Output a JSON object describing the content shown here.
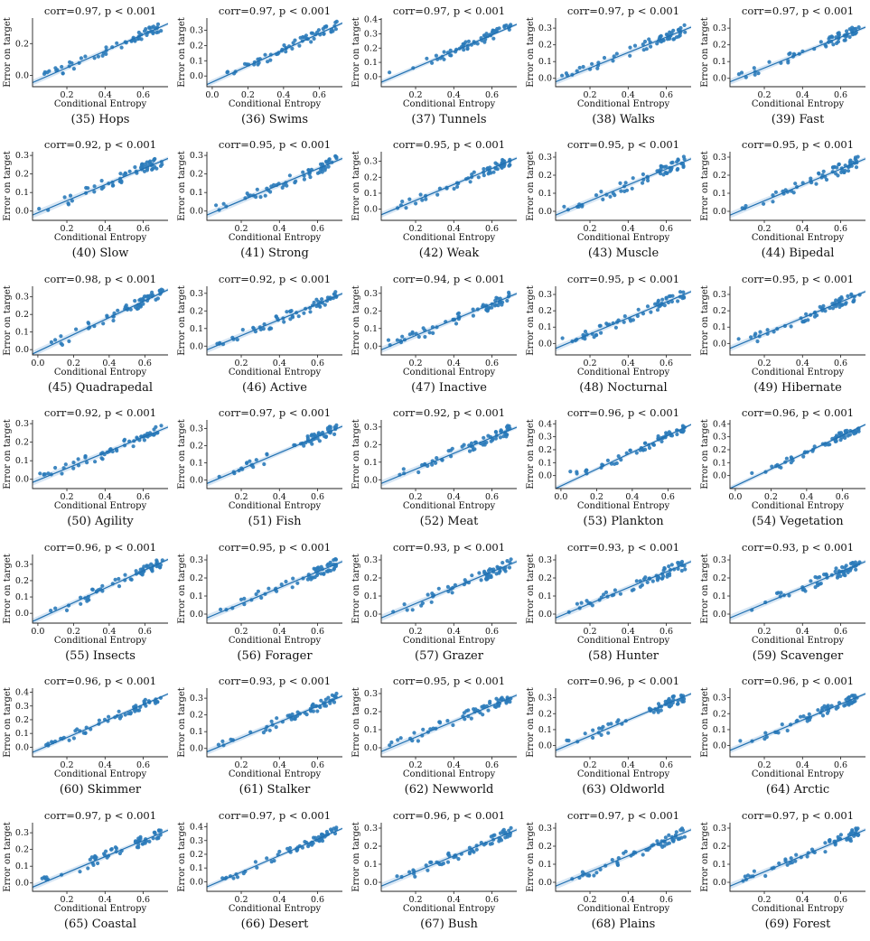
{
  "chart_data": [
    {
      "type": "scatter",
      "title": "corr=0.97, p < 0.001",
      "caption": "(35) Hops",
      "xlabel": "Conditional Entropy",
      "ylabel": "Error on target",
      "xlim": [
        0.02,
        0.73
      ],
      "ylim": [
        -0.07,
        0.36
      ],
      "xticks": [
        0.2,
        0.4,
        0.6
      ],
      "yticks": [
        0.0,
        0.2
      ],
      "fit": [
        -0.055,
        0.52
      ]
    },
    {
      "type": "scatter",
      "title": "corr=0.97, p < 0.001",
      "caption": "(36) Swims",
      "xlabel": "Conditional Entropy",
      "ylabel": "Error on target",
      "xlim": [
        -0.03,
        0.73
      ],
      "ylim": [
        -0.07,
        0.38
      ],
      "xticks": [
        0.0,
        0.2,
        0.4,
        0.6
      ],
      "yticks": [
        0.0,
        0.1,
        0.2,
        0.3
      ],
      "fit": [
        -0.04,
        0.53
      ]
    },
    {
      "type": "scatter",
      "title": "corr=0.97, p < 0.001",
      "caption": "(37) Tunnels",
      "xlabel": "Conditional Entropy",
      "ylabel": "Error on target",
      "xlim": [
        0.02,
        0.73
      ],
      "ylim": [
        -0.07,
        0.41
      ],
      "xticks": [
        0.2,
        0.4,
        0.6
      ],
      "yticks": [
        0.0,
        0.1,
        0.2,
        0.3,
        0.4
      ],
      "fit": [
        -0.05,
        0.57
      ]
    },
    {
      "type": "scatter",
      "title": "corr=0.97, p < 0.001",
      "caption": "(38) Walks",
      "xlabel": "Conditional Entropy",
      "ylabel": "Error on target",
      "xlim": [
        0.02,
        0.73
      ],
      "ylim": [
        -0.05,
        0.36
      ],
      "xticks": [
        0.2,
        0.4,
        0.6
      ],
      "yticks": [
        0.0,
        0.1,
        0.2,
        0.3
      ],
      "fit": [
        -0.03,
        0.46
      ]
    },
    {
      "type": "scatter",
      "title": "corr=0.97, p < 0.001",
      "caption": "(39) Fast",
      "xlabel": "Conditional Entropy",
      "ylabel": "Error on target",
      "xlim": [
        0.02,
        0.73
      ],
      "ylim": [
        -0.05,
        0.36
      ],
      "xticks": [
        0.2,
        0.4,
        0.6
      ],
      "yticks": [
        0.0,
        0.1,
        0.2,
        0.3
      ],
      "fit": [
        -0.03,
        0.46
      ]
    },
    {
      "type": "scatter",
      "title": "corr=0.92, p < 0.001",
      "caption": "(40) Slow",
      "xlabel": "Conditional Entropy",
      "ylabel": "Error on target",
      "xlim": [
        0.02,
        0.73
      ],
      "ylim": [
        -0.05,
        0.32
      ],
      "xticks": [
        0.2,
        0.4,
        0.6
      ],
      "yticks": [
        0.0,
        0.1,
        0.2,
        0.3
      ],
      "fit": [
        -0.03,
        0.43
      ]
    },
    {
      "type": "scatter",
      "title": "corr=0.95, p < 0.001",
      "caption": "(41) Strong",
      "xlabel": "Conditional Entropy",
      "ylabel": "Error on target",
      "xlim": [
        0.02,
        0.73
      ],
      "ylim": [
        -0.05,
        0.32
      ],
      "xticks": [
        0.2,
        0.4,
        0.6
      ],
      "yticks": [
        0.0,
        0.1,
        0.2,
        0.3
      ],
      "fit": [
        -0.03,
        0.43
      ]
    },
    {
      "type": "scatter",
      "title": "corr=0.95, p < 0.001",
      "caption": "(42) Weak",
      "xlabel": "Conditional Entropy",
      "ylabel": "Error on target",
      "xlim": [
        0.02,
        0.73
      ],
      "ylim": [
        -0.07,
        0.36
      ],
      "xticks": [
        0.2,
        0.4,
        0.6
      ],
      "yticks": [
        0.0,
        0.1,
        0.2,
        0.3
      ],
      "fit": [
        -0.045,
        0.5
      ]
    },
    {
      "type": "scatter",
      "title": "corr=0.95, p < 0.001",
      "caption": "(43) Muscle",
      "xlabel": "Conditional Entropy",
      "ylabel": "Error on target",
      "xlim": [
        0.02,
        0.73
      ],
      "ylim": [
        -0.05,
        0.33
      ],
      "xticks": [
        0.2,
        0.4,
        0.6
      ],
      "yticks": [
        0.0,
        0.1,
        0.2,
        0.3
      ],
      "fit": [
        -0.03,
        0.44
      ]
    },
    {
      "type": "scatter",
      "title": "corr=0.95, p < 0.001",
      "caption": "(44) Bipedal",
      "xlabel": "Conditional Entropy",
      "ylabel": "Error on target",
      "xlim": [
        0.02,
        0.73
      ],
      "ylim": [
        -0.05,
        0.33
      ],
      "xticks": [
        0.2,
        0.4,
        0.6
      ],
      "yticks": [
        0.0,
        0.1,
        0.2,
        0.3
      ],
      "fit": [
        -0.03,
        0.44
      ]
    },
    {
      "type": "scatter",
      "title": "corr=0.98, p < 0.001",
      "caption": "(45) Quadrapedal",
      "xlabel": "Conditional Entropy",
      "ylabel": "Error on target",
      "xlim": [
        -0.03,
        0.73
      ],
      "ylim": [
        -0.03,
        0.36
      ],
      "xticks": [
        0.0,
        0.2,
        0.4,
        0.6
      ],
      "yticks": [
        0.0,
        0.1,
        0.2,
        0.3
      ],
      "fit": [
        -0.01,
        0.48
      ]
    },
    {
      "type": "scatter",
      "title": "corr=0.92, p < 0.001",
      "caption": "(46) Active",
      "xlabel": "Conditional Entropy",
      "ylabel": "Error on target",
      "xlim": [
        0.02,
        0.73
      ],
      "ylim": [
        -0.05,
        0.34
      ],
      "xticks": [
        0.2,
        0.4,
        0.6
      ],
      "yticks": [
        0.0,
        0.1,
        0.2,
        0.3
      ],
      "fit": [
        -0.03,
        0.45
      ]
    },
    {
      "type": "scatter",
      "title": "corr=0.94, p < 0.001",
      "caption": "(47) Inactive",
      "xlabel": "Conditional Entropy",
      "ylabel": "Error on target",
      "xlim": [
        0.02,
        0.73
      ],
      "ylim": [
        -0.05,
        0.34
      ],
      "xticks": [
        0.2,
        0.4,
        0.6
      ],
      "yticks": [
        0.0,
        0.1,
        0.2,
        0.3
      ],
      "fit": [
        -0.03,
        0.45
      ]
    },
    {
      "type": "scatter",
      "title": "corr=0.95, p < 0.001",
      "caption": "(48) Nocturnal",
      "xlabel": "Conditional Entropy",
      "ylabel": "Error on target",
      "xlim": [
        0.02,
        0.73
      ],
      "ylim": [
        -0.07,
        0.35
      ],
      "xticks": [
        0.2,
        0.4,
        0.6
      ],
      "yticks": [
        0.0,
        0.1,
        0.2,
        0.3
      ],
      "fit": [
        -0.04,
        0.49
      ]
    },
    {
      "type": "scatter",
      "title": "corr=0.95, p < 0.001",
      "caption": "(49) Hibernate",
      "xlabel": "Conditional Entropy",
      "ylabel": "Error on target",
      "xlim": [
        0.02,
        0.73
      ],
      "ylim": [
        -0.07,
        0.35
      ],
      "xticks": [
        0.2,
        0.4,
        0.6
      ],
      "yticks": [
        0.0,
        0.1,
        0.2,
        0.3
      ],
      "fit": [
        -0.04,
        0.49
      ]
    },
    {
      "type": "scatter",
      "title": "corr=0.92, p < 0.001",
      "caption": "(50) Agility",
      "xlabel": "Conditional Entropy",
      "ylabel": "Error on target",
      "xlim": [
        0.02,
        0.73
      ],
      "ylim": [
        -0.05,
        0.32
      ],
      "xticks": [
        0.2,
        0.4,
        0.6
      ],
      "yticks": [
        0.0,
        0.1,
        0.2,
        0.3
      ],
      "fit": [
        -0.025,
        0.42
      ]
    },
    {
      "type": "scatter",
      "title": "corr=0.97, p < 0.001",
      "caption": "(51) Fish",
      "xlabel": "Conditional Entropy",
      "ylabel": "Error on target",
      "xlim": [
        0.02,
        0.73
      ],
      "ylim": [
        -0.05,
        0.35
      ],
      "xticks": [
        0.2,
        0.4,
        0.6
      ],
      "yticks": [
        0.0,
        0.1,
        0.2,
        0.3
      ],
      "fit": [
        -0.03,
        0.47
      ]
    },
    {
      "type": "scatter",
      "title": "corr=0.92, p < 0.001",
      "caption": "(52) Meat",
      "xlabel": "Conditional Entropy",
      "ylabel": "Error on target",
      "xlim": [
        0.02,
        0.73
      ],
      "ylim": [
        -0.05,
        0.34
      ],
      "xticks": [
        0.2,
        0.4,
        0.6
      ],
      "yticks": [
        0.0,
        0.1,
        0.2,
        0.3
      ],
      "fit": [
        -0.03,
        0.45
      ]
    },
    {
      "type": "scatter",
      "title": "corr=0.96, p < 0.001",
      "caption": "(53) Plankton",
      "xlabel": "Conditional Entropy",
      "ylabel": "Error on target",
      "xlim": [
        -0.03,
        0.73
      ],
      "ylim": [
        -0.1,
        0.43
      ],
      "xticks": [
        0.0,
        0.2,
        0.4,
        0.6
      ],
      "yticks": [
        0.0,
        0.1,
        0.2,
        0.3,
        0.4
      ],
      "fit": [
        -0.08,
        0.65
      ]
    },
    {
      "type": "scatter",
      "title": "corr=0.96, p < 0.001",
      "caption": "(54) Vegetation",
      "xlabel": "Conditional Entropy",
      "ylabel": "Error on target",
      "xlim": [
        -0.03,
        0.73
      ],
      "ylim": [
        -0.1,
        0.43
      ],
      "xticks": [
        0.0,
        0.2,
        0.4,
        0.6
      ],
      "yticks": [
        0.0,
        0.1,
        0.2,
        0.3,
        0.4
      ],
      "fit": [
        -0.08,
        0.65
      ]
    },
    {
      "type": "scatter",
      "title": "corr=0.96, p < 0.001",
      "caption": "(55) Insects",
      "xlabel": "Conditional Entropy",
      "ylabel": "Error on target",
      "xlim": [
        -0.03,
        0.73
      ],
      "ylim": [
        -0.06,
        0.36
      ],
      "xticks": [
        0.0,
        0.2,
        0.4,
        0.6
      ],
      "yticks": [
        0.0,
        0.1,
        0.2,
        0.3
      ],
      "fit": [
        -0.035,
        0.5
      ]
    },
    {
      "type": "scatter",
      "title": "corr=0.95, p < 0.001",
      "caption": "(56) Forager",
      "xlabel": "Conditional Entropy",
      "ylabel": "Error on target",
      "xlim": [
        0.02,
        0.73
      ],
      "ylim": [
        -0.05,
        0.33
      ],
      "xticks": [
        0.2,
        0.4,
        0.6
      ],
      "yticks": [
        0.0,
        0.1,
        0.2,
        0.3
      ],
      "fit": [
        -0.03,
        0.44
      ]
    },
    {
      "type": "scatter",
      "title": "corr=0.93, p < 0.001",
      "caption": "(57) Grazer",
      "xlabel": "Conditional Entropy",
      "ylabel": "Error on target",
      "xlim": [
        0.02,
        0.73
      ],
      "ylim": [
        -0.05,
        0.33
      ],
      "xticks": [
        0.2,
        0.4,
        0.6
      ],
      "yticks": [
        0.0,
        0.1,
        0.2,
        0.3
      ],
      "fit": [
        -0.03,
        0.44
      ]
    },
    {
      "type": "scatter",
      "title": "corr=0.93, p < 0.001",
      "caption": "(58) Hunter",
      "xlabel": "Conditional Entropy",
      "ylabel": "Error on target",
      "xlim": [
        0.02,
        0.73
      ],
      "ylim": [
        -0.05,
        0.33
      ],
      "xticks": [
        0.2,
        0.4,
        0.6
      ],
      "yticks": [
        0.0,
        0.1,
        0.2,
        0.3
      ],
      "fit": [
        -0.03,
        0.44
      ]
    },
    {
      "type": "scatter",
      "title": "corr=0.93, p < 0.001",
      "caption": "(59) Scavenger",
      "xlabel": "Conditional Entropy",
      "ylabel": "Error on target",
      "xlim": [
        0.02,
        0.73
      ],
      "ylim": [
        -0.05,
        0.33
      ],
      "xticks": [
        0.2,
        0.4,
        0.6
      ],
      "yticks": [
        0.0,
        0.1,
        0.2,
        0.3
      ],
      "fit": [
        -0.03,
        0.44
      ]
    },
    {
      "type": "scatter",
      "title": "corr=0.96, p < 0.001",
      "caption": "(60) Skimmer",
      "xlabel": "Conditional Entropy",
      "ylabel": "Error on target",
      "xlim": [
        0.02,
        0.73
      ],
      "ylim": [
        -0.07,
        0.43
      ],
      "xticks": [
        0.2,
        0.4,
        0.6
      ],
      "yticks": [
        0.0,
        0.1,
        0.2,
        0.3,
        0.4
      ],
      "fit": [
        -0.05,
        0.6
      ]
    },
    {
      "type": "scatter",
      "title": "corr=0.93, p < 0.001",
      "caption": "(61) Stalker",
      "xlabel": "Conditional Entropy",
      "ylabel": "Error on target",
      "xlim": [
        0.02,
        0.73
      ],
      "ylim": [
        -0.05,
        0.36
      ],
      "xticks": [
        0.2,
        0.4,
        0.6
      ],
      "yticks": [
        0.0,
        0.1,
        0.2,
        0.3
      ],
      "fit": [
        -0.03,
        0.47
      ]
    },
    {
      "type": "scatter",
      "title": "corr=0.95, p < 0.001",
      "caption": "(62) Newworld",
      "xlabel": "Conditional Entropy",
      "ylabel": "Error on target",
      "xlim": [
        0.02,
        0.73
      ],
      "ylim": [
        -0.05,
        0.33
      ],
      "xticks": [
        0.2,
        0.4,
        0.6
      ],
      "yticks": [
        0.0,
        0.1,
        0.2,
        0.3
      ],
      "fit": [
        -0.03,
        0.44
      ]
    },
    {
      "type": "scatter",
      "title": "corr=0.96, p < 0.001",
      "caption": "(63) Oldworld",
      "xlabel": "Conditional Entropy",
      "ylabel": "Error on target",
      "xlim": [
        0.02,
        0.73
      ],
      "ylim": [
        -0.07,
        0.36
      ],
      "xticks": [
        0.2,
        0.4,
        0.6
      ],
      "yticks": [
        0.0,
        0.1,
        0.2,
        0.3
      ],
      "fit": [
        -0.04,
        0.5
      ]
    },
    {
      "type": "scatter",
      "title": "corr=0.96, p < 0.001",
      "caption": "(64) Arctic",
      "xlabel": "Conditional Entropy",
      "ylabel": "Error on target",
      "xlim": [
        0.02,
        0.73
      ],
      "ylim": [
        -0.07,
        0.36
      ],
      "xticks": [
        0.2,
        0.4,
        0.6
      ],
      "yticks": [
        0.0,
        0.1,
        0.2,
        0.3
      ],
      "fit": [
        -0.04,
        0.5
      ]
    },
    {
      "type": "scatter",
      "title": "corr=0.97, p < 0.001",
      "caption": "(65) Coastal",
      "xlabel": "Conditional Entropy",
      "ylabel": "Error on target",
      "xlim": [
        0.02,
        0.73
      ],
      "ylim": [
        -0.05,
        0.36
      ],
      "xticks": [
        0.2,
        0.4,
        0.6
      ],
      "yticks": [
        0.0,
        0.1,
        0.2,
        0.3
      ],
      "fit": [
        -0.035,
        0.48
      ]
    },
    {
      "type": "scatter",
      "title": "corr=0.97, p < 0.001",
      "caption": "(66) Desert",
      "xlabel": "Conditional Entropy",
      "ylabel": "Error on target",
      "xlim": [
        0.02,
        0.73
      ],
      "ylim": [
        -0.07,
        0.43
      ],
      "xticks": [
        0.2,
        0.4,
        0.6
      ],
      "yticks": [
        0.0,
        0.1,
        0.2,
        0.3,
        0.4
      ],
      "fit": [
        -0.05,
        0.6
      ]
    },
    {
      "type": "scatter",
      "title": "corr=0.96, p < 0.001",
      "caption": "(67) Bush",
      "xlabel": "Conditional Entropy",
      "ylabel": "Error on target",
      "xlim": [
        0.02,
        0.73
      ],
      "ylim": [
        -0.05,
        0.33
      ],
      "xticks": [
        0.2,
        0.4,
        0.6
      ],
      "yticks": [
        0.0,
        0.1,
        0.2,
        0.3
      ],
      "fit": [
        -0.03,
        0.44
      ]
    },
    {
      "type": "scatter",
      "title": "corr=0.97, p < 0.001",
      "caption": "(68) Plains",
      "xlabel": "Conditional Entropy",
      "ylabel": "Error on target",
      "xlim": [
        0.02,
        0.73
      ],
      "ylim": [
        -0.05,
        0.33
      ],
      "xticks": [
        0.2,
        0.4,
        0.6
      ],
      "yticks": [
        0.0,
        0.1,
        0.2,
        0.3
      ],
      "fit": [
        -0.03,
        0.44
      ]
    },
    {
      "type": "scatter",
      "title": "corr=0.97, p < 0.001",
      "caption": "(69) Forest",
      "xlabel": "Conditional Entropy",
      "ylabel": "Error on target",
      "xlim": [
        0.02,
        0.73
      ],
      "ylim": [
        -0.05,
        0.33
      ],
      "xticks": [
        0.2,
        0.4,
        0.6
      ],
      "yticks": [
        0.0,
        0.1,
        0.2,
        0.3
      ],
      "fit": [
        -0.03,
        0.44
      ]
    }
  ],
  "colors": {
    "point": "#2b7bba",
    "line": "#1f6fb0",
    "band": "#a6c8e6"
  }
}
